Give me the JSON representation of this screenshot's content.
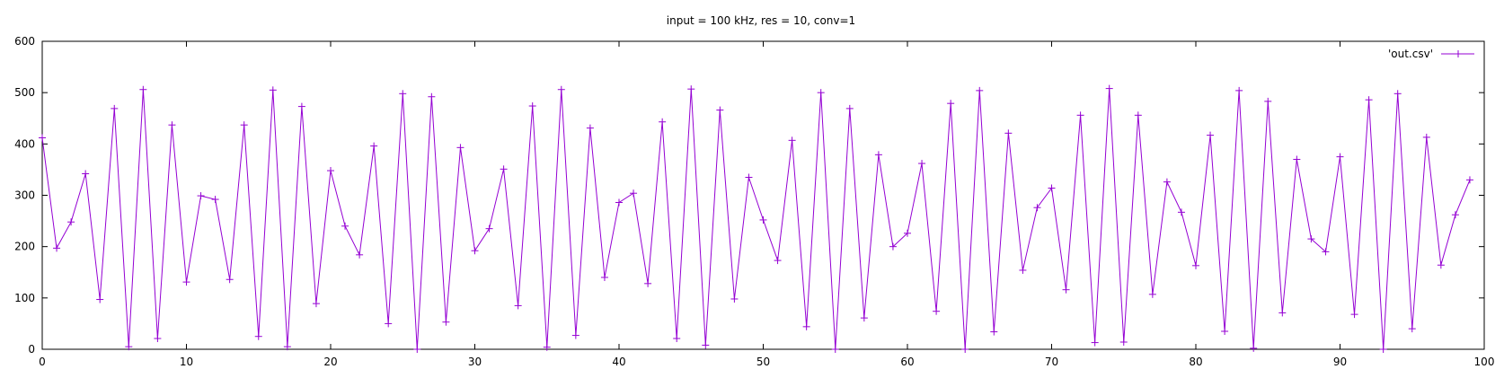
{
  "chart_data": {
    "type": "line",
    "title": "input = 100 kHz, res = 10, conv=1",
    "xlabel": "",
    "ylabel": "",
    "xlim": [
      0,
      100
    ],
    "ylim": [
      0,
      600
    ],
    "xticks": [
      0,
      10,
      20,
      30,
      40,
      50,
      60,
      70,
      80,
      90,
      100
    ],
    "yticks": [
      0,
      100,
      200,
      300,
      400,
      500,
      600
    ],
    "grid": false,
    "legend_position": "top-right",
    "series": [
      {
        "name": "'out.csv'",
        "color": "#9400d3",
        "marker": "plus",
        "x": [
          0,
          1,
          2,
          3,
          4,
          5,
          6,
          7,
          8,
          9,
          10,
          11,
          12,
          13,
          14,
          15,
          16,
          17,
          18,
          19,
          20,
          21,
          22,
          23,
          24,
          25,
          26,
          27,
          28,
          29,
          30,
          31,
          32,
          33,
          34,
          35,
          36,
          37,
          38,
          39,
          40,
          41,
          42,
          43,
          44,
          45,
          46,
          47,
          48,
          49,
          50,
          51,
          52,
          53,
          54,
          55,
          56,
          57,
          58,
          59,
          60,
          61,
          62,
          63,
          64,
          65,
          66,
          67,
          68,
          69,
          70,
          71,
          72,
          73,
          74,
          75,
          76,
          77,
          78,
          79,
          80,
          81,
          82,
          83,
          84,
          85,
          86,
          87,
          88,
          89,
          90,
          91,
          92,
          93,
          94,
          95,
          96,
          97,
          98,
          99
        ],
        "y": [
          412,
          197,
          248,
          342,
          97,
          469,
          5,
          506,
          21,
          437,
          131,
          299,
          292,
          136,
          437,
          25,
          505,
          5,
          473,
          89,
          348,
          240,
          184,
          396,
          50,
          498,
          0,
          492,
          53,
          393,
          192,
          235,
          351,
          85,
          474,
          4,
          506,
          27,
          431,
          140,
          286,
          304,
          128,
          443,
          21,
          507,
          8,
          466,
          98,
          335,
          252,
          173,
          407,
          44,
          500,
          0,
          469,
          61,
          379,
          200,
          226,
          362,
          74,
          479,
          0,
          504,
          34,
          421,
          154,
          276,
          314,
          116,
          456,
          13,
          508,
          14,
          456,
          107,
          326,
          267,
          163,
          417,
          35,
          504,
          2,
          483,
          71,
          370,
          215,
          190,
          375,
          68,
          486,
          0,
          498,
          40,
          413,
          164,
          262,
          330
        ]
      }
    ]
  }
}
